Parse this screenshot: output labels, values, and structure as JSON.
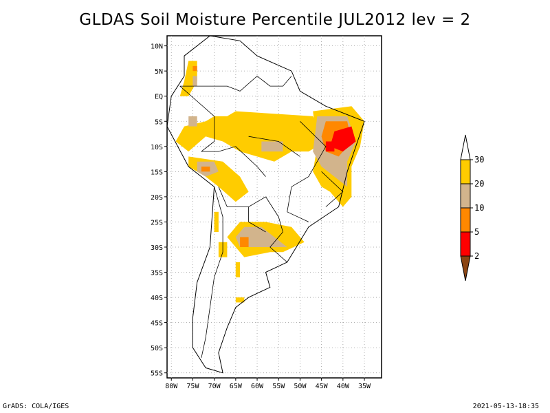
{
  "title": "GLDAS Soil Moisture Percentile JUL2012 lev = 2",
  "footer": {
    "left": "GrADS: COLA/IGES",
    "right": "2021-05-13-18:35"
  },
  "map": {
    "lon_range": [
      -81,
      -31
    ],
    "lat_range": [
      -56,
      12
    ],
    "lat_ticks": [
      {
        "value": 10,
        "label": "10N"
      },
      {
        "value": 5,
        "label": "5N"
      },
      {
        "value": 0,
        "label": "EQ"
      },
      {
        "value": -5,
        "label": "5S"
      },
      {
        "value": -10,
        "label": "10S"
      },
      {
        "value": -15,
        "label": "15S"
      },
      {
        "value": -20,
        "label": "20S"
      },
      {
        "value": -25,
        "label": "25S"
      },
      {
        "value": -30,
        "label": "30S"
      },
      {
        "value": -35,
        "label": "35S"
      },
      {
        "value": -40,
        "label": "40S"
      },
      {
        "value": -45,
        "label": "45S"
      },
      {
        "value": -50,
        "label": "50S"
      },
      {
        "value": -55,
        "label": "55S"
      }
    ],
    "lon_ticks": [
      {
        "value": -80,
        "label": "80W"
      },
      {
        "value": -75,
        "label": "75W"
      },
      {
        "value": -70,
        "label": "70W"
      },
      {
        "value": -65,
        "label": "65W"
      },
      {
        "value": -60,
        "label": "60W"
      },
      {
        "value": -55,
        "label": "55W"
      },
      {
        "value": -50,
        "label": "50W"
      },
      {
        "value": -45,
        "label": "45W"
      },
      {
        "value": -40,
        "label": "40W"
      },
      {
        "value": -35,
        "label": "35W"
      }
    ],
    "grid": true,
    "colors": {
      "p20_30": "#ffcc00",
      "p10_20": "#d2b48c",
      "p5_10": "#ff8800",
      "p2_5": "#ff0000",
      "lt2": "#8b4513"
    },
    "regions": [
      {
        "class": "p20_30",
        "lonlat": [
          [
            -65,
            -3
          ],
          [
            -47,
            -4
          ],
          [
            -44,
            -9
          ],
          [
            -48,
            -11
          ],
          [
            -52,
            -11
          ],
          [
            -56,
            -13
          ],
          [
            -60,
            -12
          ],
          [
            -64,
            -11
          ],
          [
            -68,
            -9
          ],
          [
            -72,
            -8
          ],
          [
            -76,
            -11
          ],
          [
            -79,
            -9
          ],
          [
            -77,
            -6
          ],
          [
            -72,
            -5
          ],
          [
            -70,
            -4
          ],
          [
            -67,
            -4
          ]
        ]
      },
      {
        "class": "p20_30",
        "lonlat": [
          [
            -47,
            -3
          ],
          [
            -38,
            -2
          ],
          [
            -35,
            -5
          ],
          [
            -36,
            -10
          ],
          [
            -38,
            -14
          ],
          [
            -38,
            -20
          ],
          [
            -40,
            -22
          ],
          [
            -43,
            -19
          ],
          [
            -45,
            -18
          ],
          [
            -47,
            -15
          ],
          [
            -46,
            -10
          ]
        ]
      },
      {
        "class": "p20_30",
        "lonlat": [
          [
            -76,
            7
          ],
          [
            -74,
            7
          ],
          [
            -74,
            3
          ],
          [
            -76,
            0
          ],
          [
            -78,
            0
          ],
          [
            -77,
            3
          ]
        ]
      },
      {
        "class": "p20_30",
        "lonlat": [
          [
            -76,
            -12
          ],
          [
            -68,
            -13
          ],
          [
            -64,
            -16
          ],
          [
            -62,
            -19
          ],
          [
            -65,
            -21
          ],
          [
            -69,
            -18
          ],
          [
            -72,
            -16
          ],
          [
            -76,
            -14
          ]
        ]
      },
      {
        "class": "p20_30",
        "lonlat": [
          [
            -64,
            -25
          ],
          [
            -58,
            -25
          ],
          [
            -52,
            -26
          ],
          [
            -49,
            -29
          ],
          [
            -54,
            -31
          ],
          [
            -57,
            -31
          ],
          [
            -63,
            -32
          ],
          [
            -65,
            -30
          ],
          [
            -67,
            -28
          ]
        ]
      },
      {
        "class": "p20_30",
        "lonlat": [
          [
            -70,
            -23
          ],
          [
            -69,
            -23
          ],
          [
            -69,
            -27
          ],
          [
            -70,
            -27
          ]
        ]
      },
      {
        "class": "p20_30",
        "lonlat": [
          [
            -69,
            -29
          ],
          [
            -67,
            -29
          ],
          [
            -67,
            -32
          ],
          [
            -69,
            -32
          ]
        ]
      },
      {
        "class": "p20_30",
        "lonlat": [
          [
            -65,
            -33
          ],
          [
            -64,
            -33
          ],
          [
            -64,
            -36
          ],
          [
            -65,
            -36
          ]
        ]
      },
      {
        "class": "p20_30",
        "lonlat": [
          [
            -65,
            -40
          ],
          [
            -63,
            -40
          ],
          [
            -63,
            -41
          ],
          [
            -65,
            -41
          ]
        ]
      },
      {
        "class": "p10_20",
        "lonlat": [
          [
            -46,
            -4
          ],
          [
            -39,
            -4
          ],
          [
            -37,
            -9
          ],
          [
            -39,
            -13
          ],
          [
            -39,
            -18
          ],
          [
            -42,
            -16
          ],
          [
            -45,
            -14
          ],
          [
            -47,
            -11
          ]
        ]
      },
      {
        "class": "p10_20",
        "lonlat": [
          [
            -74,
            -13
          ],
          [
            -70,
            -13
          ],
          [
            -69,
            -15
          ],
          [
            -72,
            -16
          ],
          [
            -74,
            -15
          ]
        ]
      },
      {
        "class": "p10_20",
        "lonlat": [
          [
            -63,
            -26
          ],
          [
            -59,
            -26
          ],
          [
            -56,
            -28
          ],
          [
            -53,
            -30
          ],
          [
            -57,
            -30
          ],
          [
            -61,
            -30
          ],
          [
            -64,
            -30
          ],
          [
            -65,
            -28
          ]
        ]
      },
      {
        "class": "p10_20",
        "lonlat": [
          [
            -59,
            -9
          ],
          [
            -54,
            -9
          ],
          [
            -54,
            -11
          ],
          [
            -59,
            -11
          ]
        ]
      },
      {
        "class": "p10_20",
        "lonlat": [
          [
            -75,
            4
          ],
          [
            -74,
            4
          ],
          [
            -74,
            2
          ],
          [
            -75,
            2
          ]
        ]
      },
      {
        "class": "p10_20",
        "lonlat": [
          [
            -76,
            -4
          ],
          [
            -74,
            -4
          ],
          [
            -74,
            -6
          ],
          [
            -76,
            -6
          ]
        ]
      },
      {
        "class": "p5_10",
        "lonlat": [
          [
            -44,
            -5
          ],
          [
            -39,
            -5
          ],
          [
            -38,
            -9
          ],
          [
            -41,
            -12
          ],
          [
            -44,
            -11
          ],
          [
            -45,
            -8
          ]
        ]
      },
      {
        "class": "p5_10",
        "lonlat": [
          [
            -75,
            6
          ],
          [
            -74,
            6
          ],
          [
            -74,
            5
          ],
          [
            -75,
            5
          ]
        ]
      },
      {
        "class": "p5_10",
        "lonlat": [
          [
            -73,
            -14
          ],
          [
            -71,
            -14
          ],
          [
            -71,
            -15
          ],
          [
            -73,
            -15
          ]
        ]
      },
      {
        "class": "p5_10",
        "lonlat": [
          [
            -64,
            -28
          ],
          [
            -62,
            -28
          ],
          [
            -62,
            -30
          ],
          [
            -64,
            -30
          ]
        ]
      },
      {
        "class": "p2_5",
        "lonlat": [
          [
            -42,
            -7
          ],
          [
            -38,
            -6
          ],
          [
            -37,
            -9
          ],
          [
            -40,
            -11
          ],
          [
            -43,
            -10
          ]
        ]
      },
      {
        "class": "p2_5",
        "lonlat": [
          [
            -44,
            -9
          ],
          [
            -42,
            -9
          ],
          [
            -42,
            -11
          ],
          [
            -44,
            -11
          ]
        ]
      }
    ],
    "outline": [
      [
        -77,
        8
      ],
      [
        -71,
        12
      ],
      [
        -64,
        11
      ],
      [
        -60,
        8
      ],
      [
        -52,
        5
      ],
      [
        -50,
        1
      ],
      [
        -44,
        -2
      ],
      [
        -35,
        -5
      ],
      [
        -39,
        -15
      ],
      [
        -41,
        -22
      ],
      [
        -48,
        -26
      ],
      [
        -53,
        -33
      ],
      [
        -58,
        -35
      ],
      [
        -57,
        -38
      ],
      [
        -62,
        -40
      ],
      [
        -65,
        -42
      ],
      [
        -67,
        -46
      ],
      [
        -69,
        -51
      ],
      [
        -68,
        -55
      ],
      [
        -72,
        -54
      ],
      [
        -75,
        -50
      ],
      [
        -75,
        -44
      ],
      [
        -74,
        -37
      ],
      [
        -71,
        -30
      ],
      [
        -70,
        -18
      ],
      [
        -76,
        -14
      ],
      [
        -81,
        -6
      ],
      [
        -80,
        0
      ],
      [
        -77,
        4
      ]
    ],
    "borders": [
      [
        [
          -78,
          2
        ],
        [
          -74,
          -1
        ],
        [
          -70,
          -4
        ],
        [
          -70,
          -9
        ],
        [
          -73,
          -11
        ]
      ],
      [
        [
          -78,
          2
        ],
        [
          -74,
          2
        ],
        [
          -70,
          2
        ],
        [
          -67,
          2
        ],
        [
          -64,
          1
        ]
      ],
      [
        [
          -73,
          -11
        ],
        [
          -69,
          -11
        ],
        [
          -65,
          -10
        ],
        [
          -60,
          -14
        ],
        [
          -58,
          -16
        ]
      ],
      [
        [
          -69,
          -18
        ],
        [
          -67,
          -22
        ],
        [
          -62,
          -22
        ],
        [
          -58,
          -20
        ]
      ],
      [
        [
          -58,
          -20
        ],
        [
          -55,
          -24
        ],
        [
          -54,
          -27
        ],
        [
          -57,
          -30
        ],
        [
          -53,
          -33
        ]
      ],
      [
        [
          -70,
          -18
        ],
        [
          -68,
          -24
        ],
        [
          -68,
          -31
        ],
        [
          -70,
          -36
        ],
        [
          -71,
          -42
        ],
        [
          -72,
          -48
        ],
        [
          -73,
          -52
        ]
      ],
      [
        [
          -62,
          -22
        ],
        [
          -62,
          -25
        ],
        [
          -58,
          -27
        ]
      ],
      [
        [
          -64,
          1
        ],
        [
          -60,
          4
        ],
        [
          -57,
          2
        ],
        [
          -54,
          2
        ],
        [
          -52,
          4
        ]
      ],
      [
        [
          -50,
          -5
        ],
        [
          -44,
          -10
        ],
        [
          -48,
          -16
        ],
        [
          -52,
          -18
        ]
      ],
      [
        [
          -45,
          -15
        ],
        [
          -40,
          -19
        ],
        [
          -44,
          -22
        ]
      ],
      [
        [
          -52,
          -18
        ],
        [
          -53,
          -23
        ],
        [
          -48,
          -25
        ]
      ],
      [
        [
          -62,
          -8
        ],
        [
          -55,
          -9
        ],
        [
          -50,
          -12
        ]
      ]
    ]
  },
  "colorbar": {
    "levels": [
      "30",
      "20",
      "10",
      "5",
      "2"
    ],
    "bins": [
      {
        "class": "p20_30",
        "color": "#ffcc00"
      },
      {
        "class": "p10_20",
        "color": "#d2b48c"
      },
      {
        "class": "p5_10",
        "color": "#ff8800"
      },
      {
        "class": "p2_5",
        "color": "#ff0000"
      }
    ],
    "top_triangle_color": "#ffffff",
    "bottom_triangle_color": "#8b4513"
  }
}
